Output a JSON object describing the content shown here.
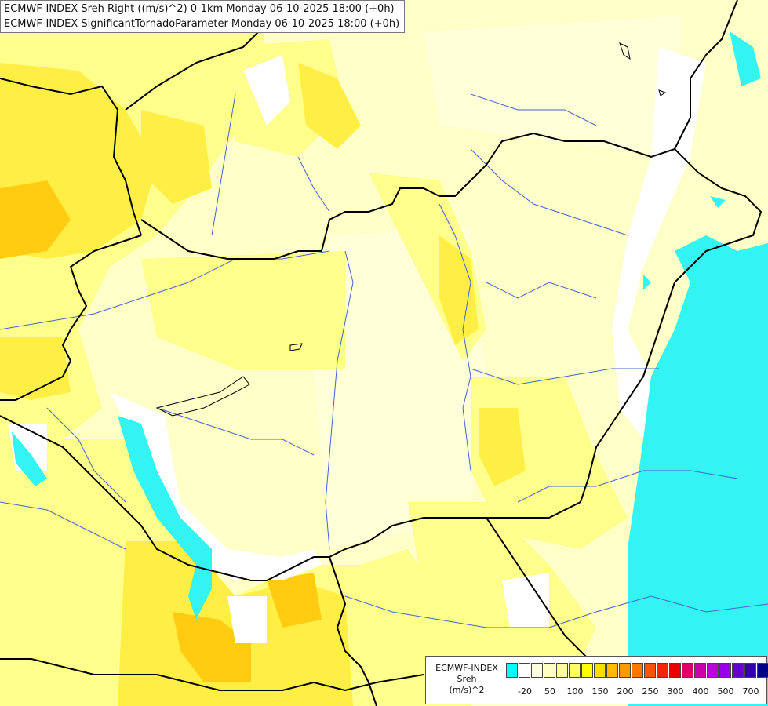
{
  "title": {
    "line1": "ECMWF-INDEX Sreh Right ((m/s)^2) 0-1km Monday 06-10-2025 18:00 (+0h)",
    "line2": "ECMWF-INDEX SignificantTornadoParameter Monday 06-10-2025 18:00 (+0h)"
  },
  "legend": {
    "line1": "ECMWF-INDEX",
    "line2": "Sreh",
    "line3": "(m/s)^2",
    "colors": [
      "#00ffff",
      "#ffffff",
      "#ffffe0",
      "#ffffc4",
      "#ffff9c",
      "#ffff66",
      "#ffff00",
      "#ffdd00",
      "#ffbb00",
      "#ff9900",
      "#ff7700",
      "#ff5500",
      "#ff2200",
      "#ee0000",
      "#dd0066",
      "#cc00aa",
      "#bb00dd",
      "#9900ee",
      "#6600cc",
      "#3300aa",
      "#000088"
    ],
    "ticks": [
      "-20",
      "50",
      "100",
      "150",
      "200",
      "250",
      "300",
      "400",
      "500",
      "700"
    ]
  },
  "colors": {
    "water_cyan": "#33f3f3",
    "light_yellow": "#ffffc4",
    "yellow": "#ffff80",
    "deep_yellow": "#ffee33",
    "orange": "#ffcc00",
    "border": "#000000",
    "river": "#4466cc"
  }
}
